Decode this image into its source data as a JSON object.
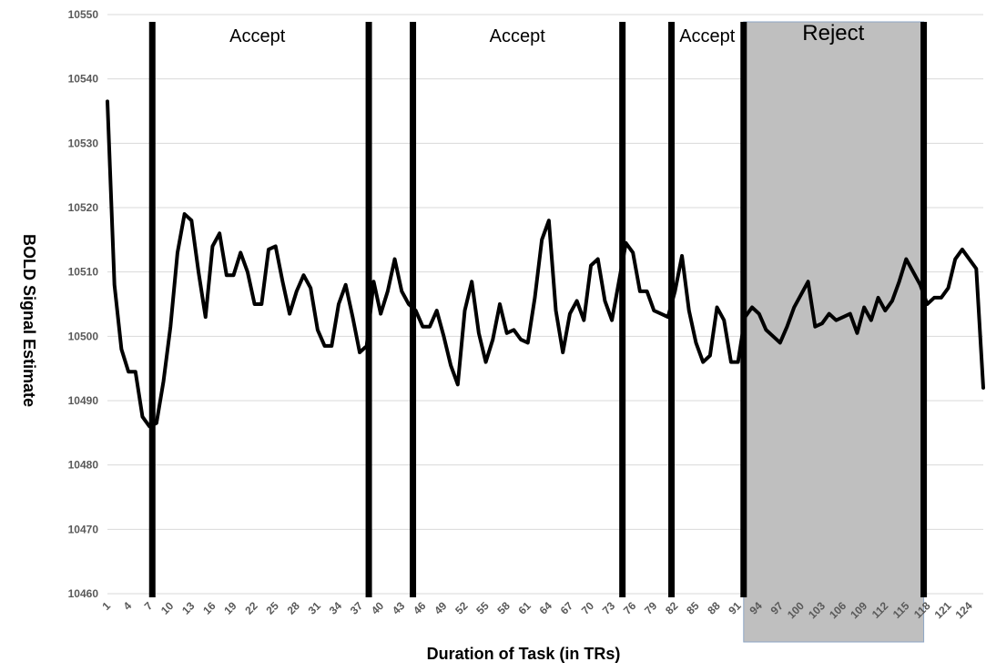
{
  "chart_data": {
    "type": "line",
    "xlabel": "Duration of Task (in TRs)",
    "ylabel": "BOLD Signal Estimate",
    "ylim": [
      10460,
      10550
    ],
    "yticks": [
      10460,
      10470,
      10480,
      10490,
      10500,
      10510,
      10520,
      10530,
      10540,
      10550
    ],
    "xlim": [
      1,
      126
    ],
    "xticks": [
      1,
      4,
      7,
      10,
      13,
      16,
      19,
      22,
      25,
      28,
      31,
      34,
      37,
      40,
      43,
      46,
      49,
      52,
      55,
      58,
      61,
      64,
      67,
      70,
      73,
      76,
      79,
      82,
      85,
      88,
      91,
      94,
      97,
      100,
      103,
      106,
      109,
      112,
      115,
      118,
      121,
      124
    ],
    "grid": true,
    "line_color": "#000000",
    "series": [
      {
        "values": [
          10536.5,
          10508,
          10498,
          10494.5,
          10494.5,
          10487.5,
          10486,
          10486.5,
          10493,
          10501.5,
          10513,
          10519,
          10518,
          10510,
          10503,
          10514,
          10516,
          10509.5,
          10509.5,
          10513,
          10510,
          10505,
          10505,
          10513.5,
          10514,
          10508.5,
          10503.5,
          10507,
          10509.5,
          10507.5,
          10501,
          10498.5,
          10498.5,
          10505,
          10508,
          10503,
          10497.5,
          10498.5,
          10508.5,
          10503.5,
          10507,
          10512,
          10507,
          10505,
          10504,
          10501.5,
          10501.5,
          10504,
          10500,
          10495.5,
          10492.5,
          10504,
          10508.5,
          10500.5,
          10496,
          10499.5,
          10505,
          10500.5,
          10501,
          10499.5,
          10499,
          10506,
          10515,
          10518,
          10504,
          10497.5,
          10503.5,
          10505.5,
          10502.5,
          10511,
          10512,
          10505.5,
          10502.5,
          10508.5,
          10514.5,
          10513,
          10507,
          10507,
          10504,
          10503.5,
          10503,
          10507,
          10512.5,
          10504,
          10499,
          10496,
          10497,
          10504.5,
          10502.5,
          10496,
          10496,
          10503,
          10504.5,
          10503.5,
          10501,
          10500,
          10499,
          10501.5,
          10504.5,
          10506.5,
          10508.5,
          10501.5,
          10502,
          10503.5,
          10502.5,
          10503,
          10503.5,
          10500.5,
          10504.5,
          10502.5,
          10506,
          10504,
          10505.5,
          10508.5,
          10512,
          10510,
          10508,
          10505,
          10506,
          10506,
          10507.5,
          10512,
          10513.5,
          10512,
          10510.5,
          10492
        ]
      }
    ],
    "boundaries": [
      7.4,
      38.3,
      44.6,
      74.5,
      81.5,
      91.8,
      117.5
    ],
    "regions": [
      {
        "label": "Accept",
        "x": 22.4,
        "shaded": false
      },
      {
        "label": "Accept",
        "x": 59.5,
        "shaded": false
      },
      {
        "label": "Accept",
        "x": 86.6,
        "shaded": false
      },
      {
        "label": "Reject",
        "x": 104.6,
        "shaded": true,
        "from": 91.8,
        "to": 117.5
      }
    ],
    "shade_color": "#bfbfbf"
  }
}
